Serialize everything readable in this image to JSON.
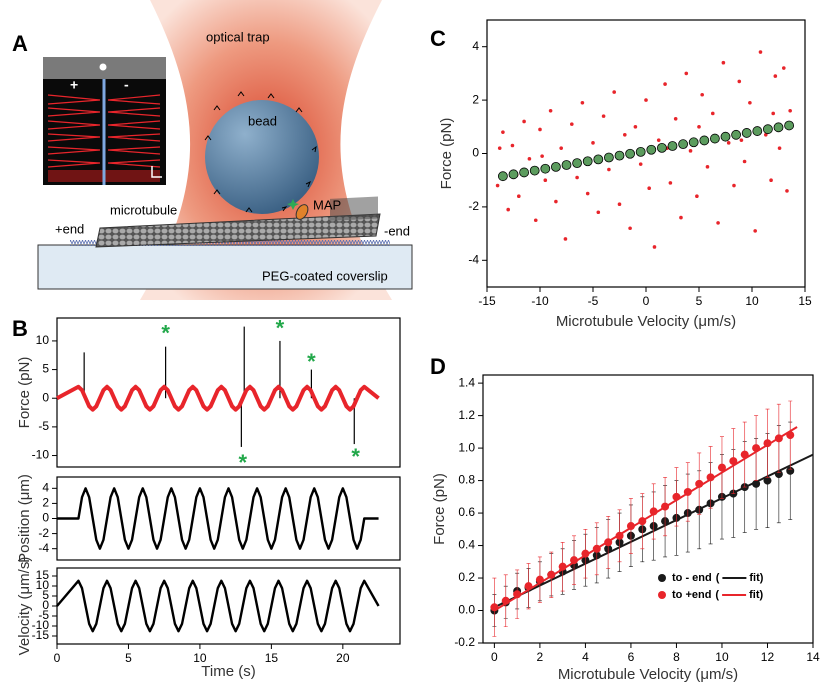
{
  "diagram": {
    "panel": "A",
    "optical_trap": "optical trap",
    "bead": "bead",
    "microtubule": "microtubule",
    "map": "MAP",
    "plus_end": "+end",
    "minus_end": "-end",
    "coverslip": "PEG-coated coverslip",
    "inset_plus": "+",
    "inset_minus": "-"
  },
  "chart_data": [
    {
      "type": "line",
      "panel": "B",
      "xlabel": "Time (s)",
      "xlim": [
        0,
        24
      ],
      "xticks": [
        0,
        5,
        10,
        15,
        20
      ],
      "x": [
        0,
        1.5,
        1.75,
        2,
        2.25,
        2.5,
        2.75,
        3,
        3.25,
        3.5,
        3.75,
        4,
        4.25,
        4.5,
        4.75,
        5,
        5.25,
        5.5,
        5.75,
        6,
        6.25,
        6.5,
        6.75,
        7,
        7.25,
        7.5,
        7.75,
        8,
        8.25,
        8.5,
        8.75,
        9,
        9.25,
        9.5,
        9.75,
        10,
        10.25,
        10.5,
        10.75,
        11,
        11.25,
        11.5,
        11.75,
        12,
        12.25,
        12.5,
        12.75,
        13,
        13.25,
        13.5,
        13.75,
        14,
        14.25,
        14.5,
        14.75,
        15,
        15.25,
        15.5,
        15.75,
        16,
        16.25,
        16.5,
        16.75,
        17,
        17.25,
        17.5,
        17.75,
        18,
        18.25,
        18.5,
        18.75,
        19,
        19.25,
        19.5,
        19.75,
        20,
        20.25,
        20.5,
        20.75,
        21,
        21.25,
        21.5,
        22.5
      ],
      "subplots": [
        {
          "ylabel": "Force (pN)",
          "ylim": [
            -12,
            14
          ],
          "yticks": [
            -10,
            -5,
            0,
            5,
            10
          ],
          "series": [
            {
              "color": "#e8252b",
              "values": [
                0,
                2,
                1.4,
                0,
                -1.4,
                -2,
                -1.4,
                0,
                1.4,
                2,
                1.4,
                0,
                -1.4,
                -2,
                -1.4,
                0,
                1.4,
                2,
                1.4,
                0,
                -1.4,
                -2,
                -1.4,
                0,
                1.4,
                2,
                1.4,
                0,
                -1.4,
                -2,
                -1.4,
                0,
                1.4,
                2,
                1.4,
                0,
                -1.4,
                -2,
                -1.4,
                0,
                1.4,
                2,
                1.4,
                0,
                -1.4,
                -2,
                -1.4,
                0,
                1.4,
                2,
                1.4,
                0,
                -1.4,
                -2,
                -1.4,
                0,
                1.4,
                2,
                1.4,
                0,
                -1.4,
                -2,
                -1.4,
                0,
                1.4,
                2,
                1.4,
                0,
                -1.4,
                -2,
                -1.4,
                0,
                1.4,
                2,
                1.4,
                0,
                -1.4,
                -2,
                -1.4,
                0,
                1.4,
                2,
                0
              ]
            }
          ],
          "spikes": {
            "color": "#000000",
            "x": [
              1.9,
              7.6,
              12.9,
              13.1,
              15.6,
              17.8,
              20.8
            ],
            "values": [
              8,
              9,
              -8.5,
              12.5,
              10,
              5,
              -8
            ]
          },
          "annotations": [
            {
              "text": "*",
              "x": 7.6,
              "y": 12
            },
            {
              "text": "*",
              "x": 15.6,
              "y": 12.8
            },
            {
              "text": "*",
              "x": 17.8,
              "y": 7
            },
            {
              "text": "*",
              "x": 13,
              "y": -10.6
            },
            {
              "text": "*",
              "x": 20.9,
              "y": -9.6
            }
          ]
        },
        {
          "ylabel": "Position (μm)",
          "ylim": [
            -5.5,
            5.5
          ],
          "yticks": [
            -4,
            -2,
            0,
            2,
            4
          ],
          "series": [
            {
              "color": "#000000",
              "values": [
                0,
                0,
                2.83,
                4,
                2.83,
                0,
                -2.83,
                -4,
                -2.83,
                0,
                2.83,
                4,
                2.83,
                0,
                -2.83,
                -4,
                -2.83,
                0,
                2.83,
                4,
                2.83,
                0,
                -2.83,
                -4,
                -2.83,
                0,
                2.83,
                4,
                2.83,
                0,
                -2.83,
                -4,
                -2.83,
                0,
                2.83,
                4,
                2.83,
                0,
                -2.83,
                -4,
                -2.83,
                0,
                2.83,
                4,
                2.83,
                0,
                -2.83,
                -4,
                -2.83,
                0,
                2.83,
                4,
                2.83,
                0,
                -2.83,
                -4,
                -2.83,
                0,
                2.83,
                4,
                2.83,
                0,
                -2.83,
                -4,
                -2.83,
                0,
                2.83,
                4,
                2.83,
                0,
                -2.83,
                -4,
                -2.83,
                0,
                2.83,
                4,
                2.83,
                0,
                -2.83,
                -4,
                -2.83,
                0,
                0
              ]
            }
          ]
        },
        {
          "ylabel": "Velocity (μm/s)",
          "ylim": [
            -19,
            19
          ],
          "yticks": [
            -15,
            -10,
            -5,
            0,
            5,
            10,
            15
          ],
          "series": [
            {
              "color": "#000000",
              "values": [
                0,
                12.6,
                8.9,
                0,
                -8.9,
                -12.6,
                -8.9,
                0,
                8.9,
                12.6,
                8.9,
                0,
                -8.9,
                -12.6,
                -8.9,
                0,
                8.9,
                12.6,
                8.9,
                0,
                -8.9,
                -12.6,
                -8.9,
                0,
                8.9,
                12.6,
                8.9,
                0,
                -8.9,
                -12.6,
                -8.9,
                0,
                8.9,
                12.6,
                8.9,
                0,
                -8.9,
                -12.6,
                -8.9,
                0,
                8.9,
                12.6,
                8.9,
                0,
                -8.9,
                -12.6,
                -8.9,
                0,
                8.9,
                12.6,
                8.9,
                0,
                -8.9,
                -12.6,
                -8.9,
                0,
                8.9,
                12.6,
                8.9,
                0,
                -8.9,
                -12.6,
                -8.9,
                0,
                8.9,
                12.6,
                8.9,
                0,
                -8.9,
                -12.6,
                -8.9,
                0,
                8.9,
                12.6,
                8.9,
                0,
                -8.9,
                -12.6,
                -8.9,
                0,
                8.9,
                12.6,
                0
              ]
            }
          ]
        }
      ]
    },
    {
      "type": "scatter",
      "panel": "C",
      "xlabel": "Microtubule Velocity (μm/s)",
      "ylabel": "Force (pN)",
      "xlim": [
        -15,
        15
      ],
      "xticks": [
        -15,
        -10,
        -5,
        0,
        5,
        10,
        15
      ],
      "ylim": [
        -5,
        5
      ],
      "yticks": [
        -4,
        -2,
        0,
        2,
        4
      ],
      "series": [
        {
          "color": "#e8252b",
          "x": [
            -14,
            -13.5,
            -13,
            -12.6,
            -12,
            -11.5,
            -11,
            -10.4,
            -10,
            -9.5,
            -9,
            -8.5,
            -8,
            -7.6,
            -7,
            -6.5,
            -6,
            -5.5,
            -5,
            -4.5,
            -4,
            -3.5,
            -3,
            -2.5,
            -2,
            -1.5,
            -1,
            -0.5,
            0,
            0.3,
            0.8,
            1.2,
            1.8,
            2.3,
            2.8,
            3.3,
            3.8,
            4.2,
            4.8,
            5.3,
            5.8,
            6.3,
            6.8,
            7.3,
            7.8,
            8.3,
            8.8,
            9.3,
            9.8,
            10.3,
            10.8,
            11.3,
            11.8,
            12.2,
            12.6,
            13,
            13.3,
            13.6,
            -13.8,
            -12.2,
            -9.8,
            2,
            5,
            9,
            12
          ],
          "values": [
            -1.2,
            0.8,
            -2.1,
            0.3,
            -1.6,
            1.2,
            -0.2,
            -2.5,
            0.9,
            -1,
            1.6,
            -1.8,
            0.2,
            -3.2,
            1.1,
            -0.9,
            1.9,
            -1.5,
            0.4,
            -2.2,
            1.4,
            -0.6,
            2.3,
            -1.9,
            0.7,
            -2.8,
            1,
            -0.4,
            2,
            -1.3,
            -3.5,
            0.5,
            2.6,
            -1.1,
            1.3,
            -2.4,
            3,
            0.1,
            -1.6,
            2.2,
            -0.5,
            1.5,
            -2.6,
            3.4,
            0.4,
            -1.2,
            2.7,
            -0.3,
            1.9,
            -2.9,
            3.8,
            0.7,
            -1,
            2.9,
            0.2,
            3.2,
            -1.4,
            1.6,
            0.2,
            -0.8,
            -0.1,
            0.2,
            1,
            0.5,
            1.5
          ]
        },
        {
          "color": "#5c9c5e",
          "x": [
            -13.5,
            -12.5,
            -11.5,
            -10.5,
            -9.5,
            -8.5,
            -7.5,
            -6.5,
            -5.5,
            -4.5,
            -3.5,
            -2.5,
            -1.5,
            -0.5,
            0.5,
            1.5,
            2.5,
            3.5,
            4.5,
            5.5,
            6.5,
            7.5,
            8.5,
            9.5,
            10.5,
            11.5,
            12.5,
            13.5
          ],
          "values": [
            -0.85,
            -0.78,
            -0.71,
            -0.64,
            -0.57,
            -0.5,
            -0.43,
            -0.36,
            -0.29,
            -0.22,
            -0.15,
            -0.08,
            -0.01,
            0.06,
            0.14,
            0.21,
            0.28,
            0.35,
            0.42,
            0.49,
            0.56,
            0.63,
            0.7,
            0.77,
            0.84,
            0.91,
            0.98,
            1.05
          ]
        }
      ]
    },
    {
      "type": "scatter",
      "panel": "D",
      "xlabel": "Microtubule Velocity (μm/s)",
      "ylabel": "Force (pN)",
      "xlim": [
        -0.5,
        14
      ],
      "xticks": [
        0,
        2,
        4,
        6,
        8,
        10,
        12,
        14
      ],
      "ylim": [
        -0.2,
        1.45
      ],
      "yticks": [
        -0.2,
        {
          "value": 0,
          "label": "0.0"
        },
        0.2,
        0.4,
        0.6,
        0.8,
        {
          "value": 1,
          "label": "1.0"
        },
        1.2,
        1.4
      ],
      "legend_fit": {
        "open": "(",
        "close": "fit)"
      },
      "series": [
        {
          "name": "to - end",
          "color": "#1a1a1a",
          "x": [
            0,
            0.5,
            1,
            1.5,
            2,
            2.5,
            3,
            3.5,
            4,
            4.5,
            5,
            5.5,
            6,
            6.5,
            7,
            7.5,
            8,
            8.5,
            9,
            9.5,
            10,
            10.5,
            11,
            11.5,
            12,
            12.5,
            13
          ],
          "values": [
            0,
            0.05,
            0.12,
            0.14,
            0.18,
            0.22,
            0.24,
            0.28,
            0.31,
            0.34,
            0.38,
            0.42,
            0.46,
            0.5,
            0.52,
            0.55,
            0.57,
            0.6,
            0.62,
            0.66,
            0.7,
            0.72,
            0.76,
            0.78,
            0.8,
            0.84,
            0.86
          ],
          "errors": [
            0.1,
            0.1,
            0.11,
            0.12,
            0.12,
            0.13,
            0.14,
            0.15,
            0.16,
            0.17,
            0.18,
            0.18,
            0.19,
            0.2,
            0.21,
            0.22,
            0.23,
            0.24,
            0.24,
            0.25,
            0.26,
            0.27,
            0.28,
            0.28,
            0.29,
            0.3,
            0.3
          ],
          "fit": {
            "x": [
              0,
              14
            ],
            "y": [
              0.02,
              0.96
            ]
          }
        },
        {
          "name": "to +end",
          "color": "#e8252b",
          "x": [
            0,
            0.5,
            1,
            1.5,
            2,
            2.5,
            3,
            3.5,
            4,
            4.5,
            5,
            5.5,
            6,
            6.5,
            7,
            7.5,
            8,
            8.5,
            9,
            9.5,
            10,
            10.5,
            11,
            11.5,
            12,
            12.5,
            13
          ],
          "values": [
            0.02,
            0.06,
            0.1,
            0.15,
            0.19,
            0.22,
            0.27,
            0.31,
            0.35,
            0.38,
            0.42,
            0.46,
            0.52,
            0.55,
            0.61,
            0.64,
            0.7,
            0.73,
            0.78,
            0.82,
            0.88,
            0.92,
            0.96,
            1,
            1.03,
            1.06,
            1.08
          ],
          "errors": [
            0.18,
            0.16,
            0.15,
            0.14,
            0.14,
            0.14,
            0.15,
            0.15,
            0.15,
            0.16,
            0.16,
            0.16,
            0.17,
            0.17,
            0.17,
            0.18,
            0.18,
            0.18,
            0.19,
            0.19,
            0.19,
            0.2,
            0.2,
            0.2,
            0.21,
            0.21,
            0.21
          ],
          "fit": {
            "x": [
              0,
              13.3
            ],
            "y": [
              0,
              1.13
            ]
          }
        }
      ]
    }
  ]
}
